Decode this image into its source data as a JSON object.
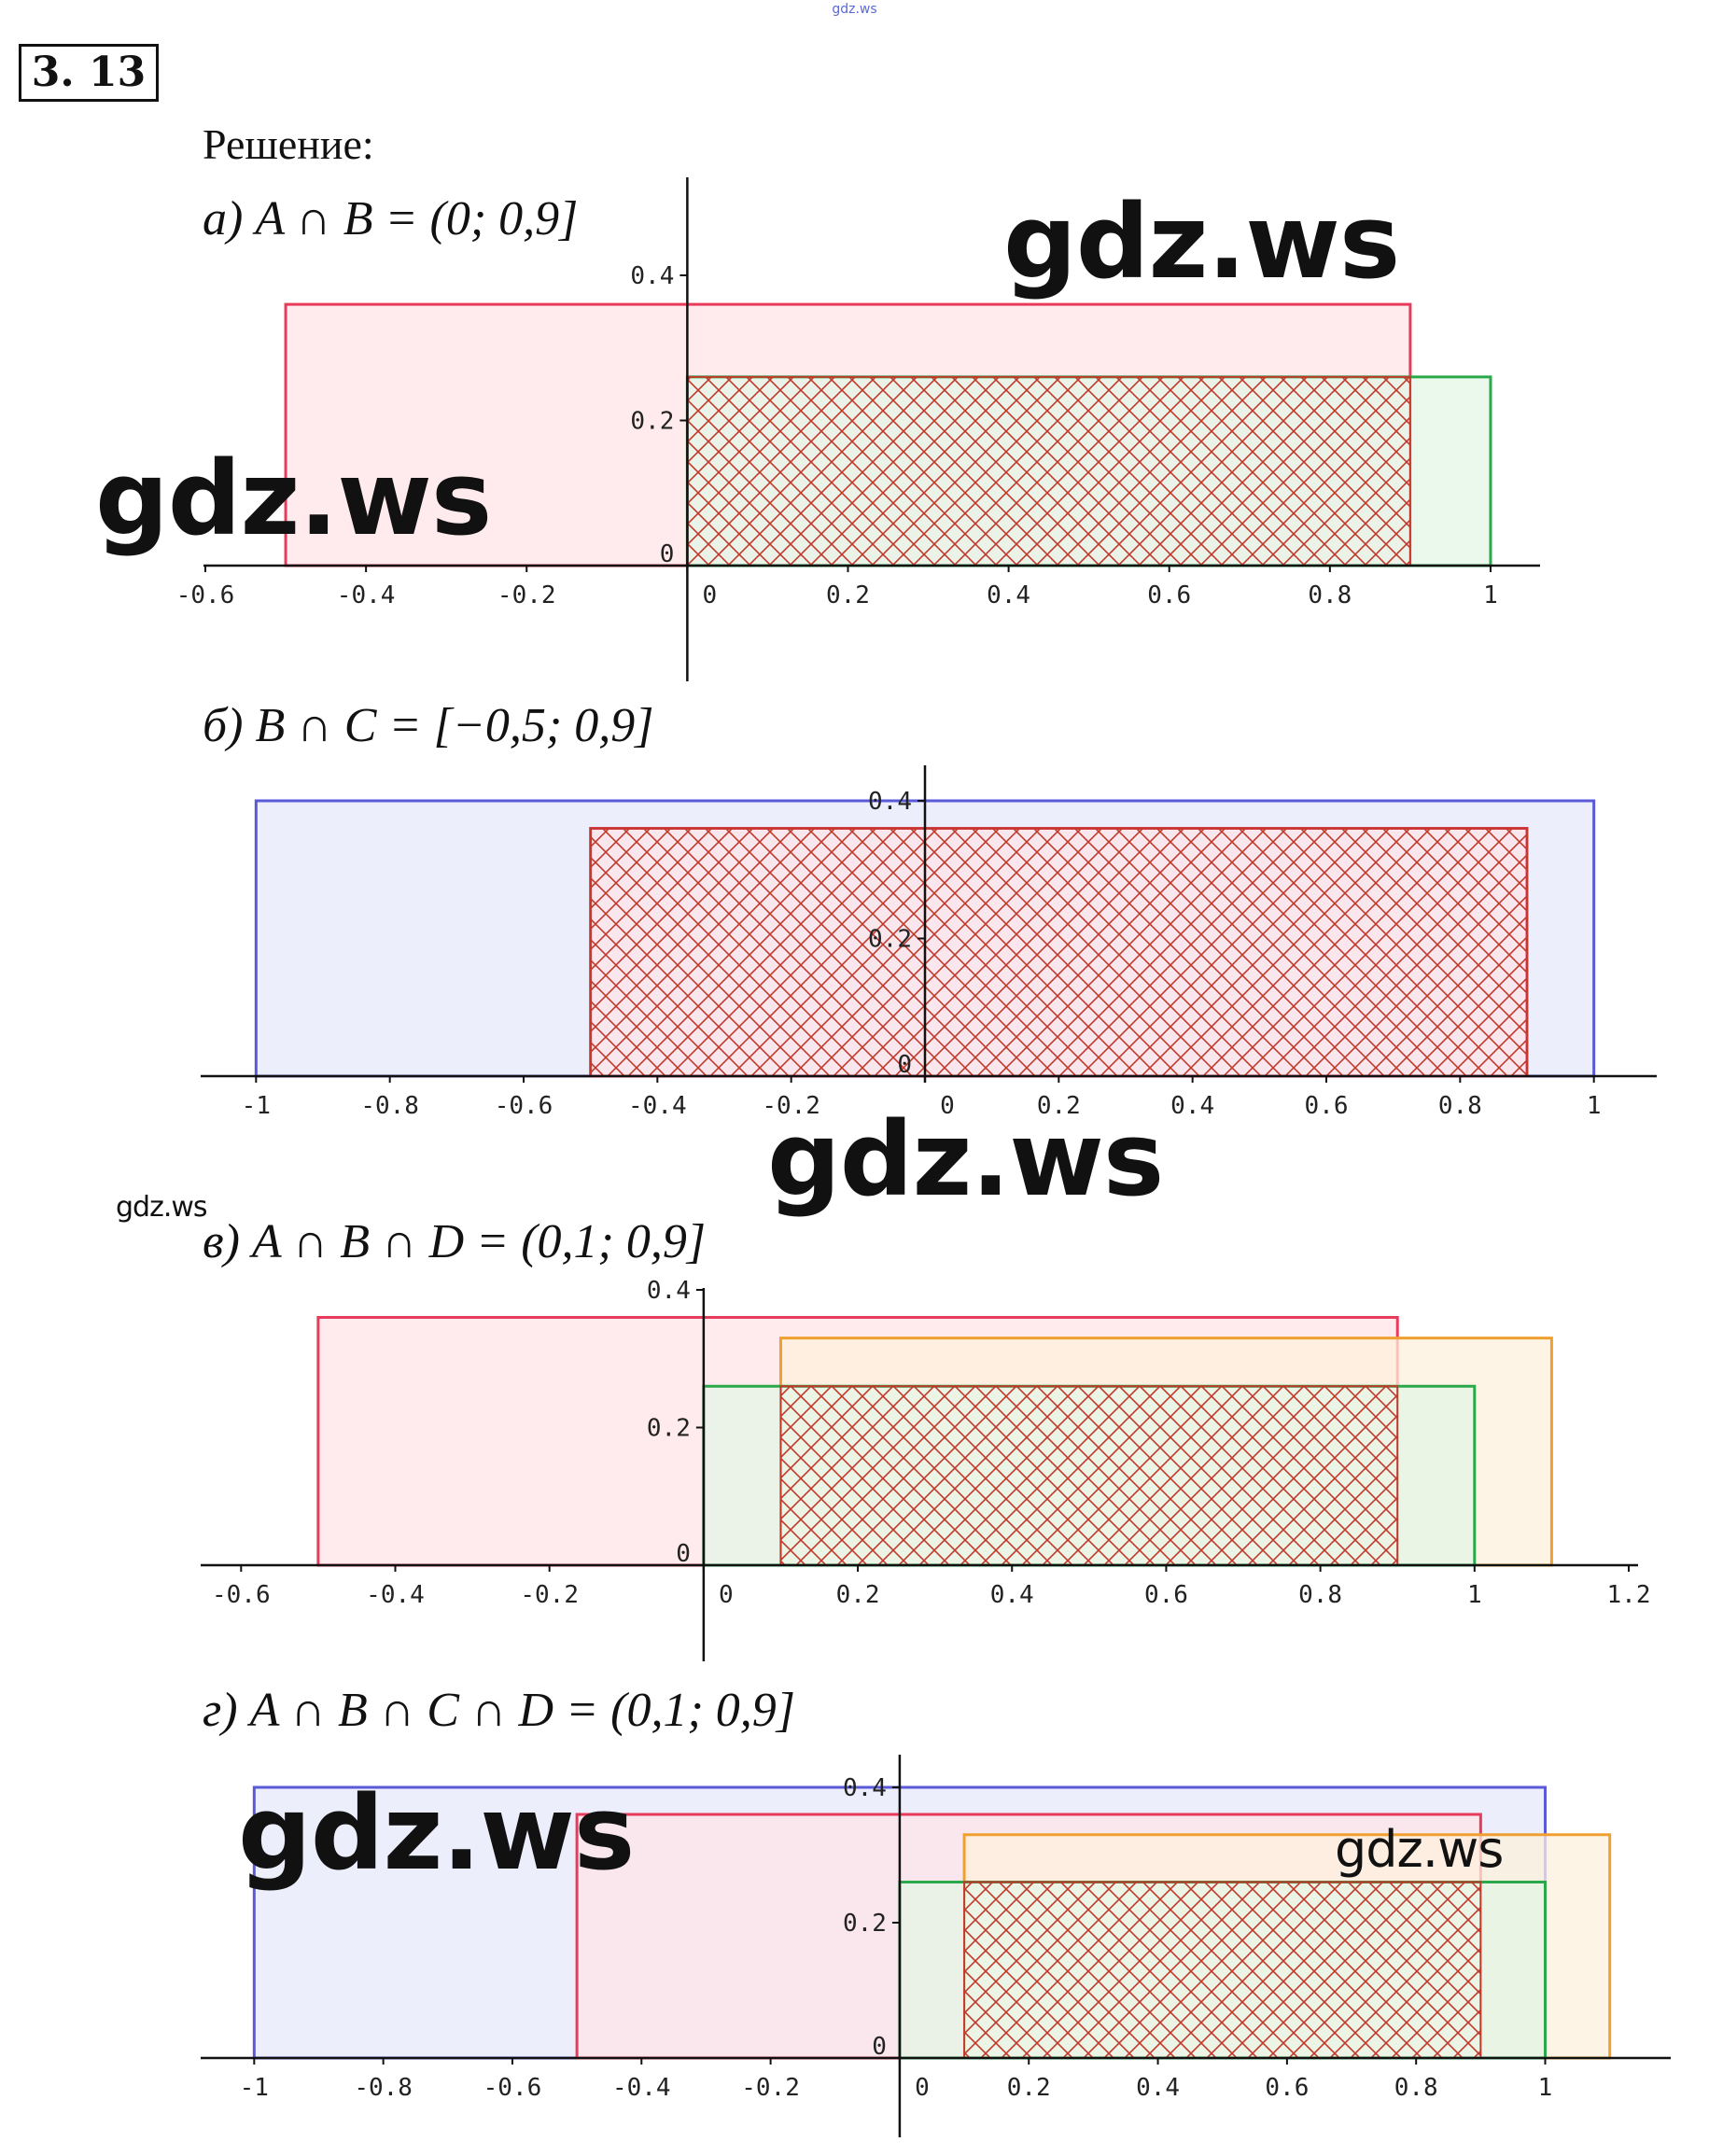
{
  "watermark_small_top": "gdz.ws",
  "problem_number": "3. 13",
  "solution_label": "Решение:",
  "watermarks": [
    "gdz.ws",
    "gdz.ws",
    "gdz.ws",
    "gdz.ws",
    "gdz.ws",
    "gdz.ws"
  ],
  "colors": {
    "red": "#e83a5a",
    "green": "#2aa84a",
    "blue": "#5a5ad8",
    "orange": "#f0a030",
    "hatch": "#c0392b",
    "axis": "#111111"
  },
  "parts": [
    {
      "heading": "а) A ∩ B = (0; 0,9]",
      "chart_data": {
        "type": "area",
        "xlim": [
          -0.6,
          1.05
        ],
        "ylim": [
          0,
          0.4
        ],
        "x_ticks": [
          -0.6,
          -0.4,
          -0.2,
          0,
          0.2,
          0.4,
          0.6,
          0.8,
          1
        ],
        "x_tick_labels": [
          "-0.6",
          "-0.4",
          "-0.2",
          "0",
          "0.2",
          "0.4",
          "0.6",
          "0.8",
          "1"
        ],
        "y_ticks": [
          0,
          0.2,
          0.4
        ],
        "y_tick_labels": [
          "0",
          "0.2",
          "0.4"
        ],
        "rects": [
          {
            "x0": -0.5,
            "x1": 0.9,
            "h": 0.36,
            "color": "red"
          },
          {
            "x0": 0,
            "x1": 1,
            "h": 0.26,
            "color": "green"
          }
        ],
        "hatch": {
          "x0": 0,
          "x1": 0.9,
          "h": 0.26
        }
      }
    },
    {
      "heading": "б) B ∩ C = [−0,5; 0,9]",
      "chart_data": {
        "type": "area",
        "xlim": [
          -1.08,
          1.08
        ],
        "ylim": [
          0,
          0.4
        ],
        "x_ticks": [
          -1,
          -0.8,
          -0.6,
          -0.4,
          -0.2,
          0,
          0.2,
          0.4,
          0.6,
          0.8,
          1
        ],
        "x_tick_labels": [
          "-1",
          "-0.8",
          "-0.6",
          "-0.4",
          "-0.2",
          "0",
          "0.2",
          "0.4",
          "0.6",
          "0.8",
          "1"
        ],
        "y_ticks": [
          0,
          0.2,
          0.4
        ],
        "y_tick_labels": [
          "0",
          "0.2",
          "0.4"
        ],
        "rects": [
          {
            "x0": -1,
            "x1": 1,
            "h": 0.4,
            "color": "blue"
          },
          {
            "x0": -0.5,
            "x1": 0.9,
            "h": 0.36,
            "color": "red"
          }
        ],
        "hatch": {
          "x0": -0.5,
          "x1": 0.9,
          "h": 0.36
        }
      }
    },
    {
      "heading": "в) A ∩ B ∩ D = (0,1; 0,9]",
      "chart_data": {
        "type": "area",
        "xlim": [
          -0.65,
          1.2
        ],
        "ylim": [
          0,
          0.4
        ],
        "x_ticks": [
          -0.6,
          -0.4,
          -0.2,
          0,
          0.2,
          0.4,
          0.6,
          0.8,
          1,
          1.2
        ],
        "x_tick_labels": [
          "-0.6",
          "-0.4",
          "-0.2",
          "0",
          "0.2",
          "0.4",
          "0.6",
          "0.8",
          "1",
          "1.2"
        ],
        "y_ticks": [
          0,
          0.2,
          0.4
        ],
        "y_tick_labels": [
          "0",
          "0.2",
          "0.4"
        ],
        "rects": [
          {
            "x0": -0.5,
            "x1": 0.9,
            "h": 0.36,
            "color": "red"
          },
          {
            "x0": 0.1,
            "x1": 1.1,
            "h": 0.33,
            "color": "orange"
          },
          {
            "x0": 0,
            "x1": 1,
            "h": 0.26,
            "color": "green"
          }
        ],
        "hatch": {
          "x0": 0.1,
          "x1": 0.9,
          "h": 0.26
        }
      }
    },
    {
      "heading": "г) A ∩ B ∩ C ∩ D = (0,1; 0,9]",
      "chart_data": {
        "type": "area",
        "xlim": [
          -1.08,
          1.18
        ],
        "ylim": [
          0,
          0.4
        ],
        "x_ticks": [
          -1,
          -0.8,
          -0.6,
          -0.4,
          -0.2,
          0,
          0.2,
          0.4,
          0.6,
          0.8,
          1
        ],
        "x_tick_labels": [
          "-1",
          "-0.8",
          "-0.6",
          "-0.4",
          "-0.2",
          "0",
          "0.2",
          "0.4",
          "0.6",
          "0.8",
          "1"
        ],
        "y_ticks": [
          0,
          0.2,
          0.4
        ],
        "y_tick_labels": [
          "0",
          "0.2",
          "0.4"
        ],
        "rects": [
          {
            "x0": -1,
            "x1": 1,
            "h": 0.4,
            "color": "blue"
          },
          {
            "x0": -0.5,
            "x1": 0.9,
            "h": 0.36,
            "color": "red"
          },
          {
            "x0": 0.1,
            "x1": 1.1,
            "h": 0.33,
            "color": "orange"
          },
          {
            "x0": 0,
            "x1": 1,
            "h": 0.26,
            "color": "green"
          }
        ],
        "hatch": {
          "x0": 0.1,
          "x1": 0.9,
          "h": 0.26
        }
      }
    }
  ]
}
